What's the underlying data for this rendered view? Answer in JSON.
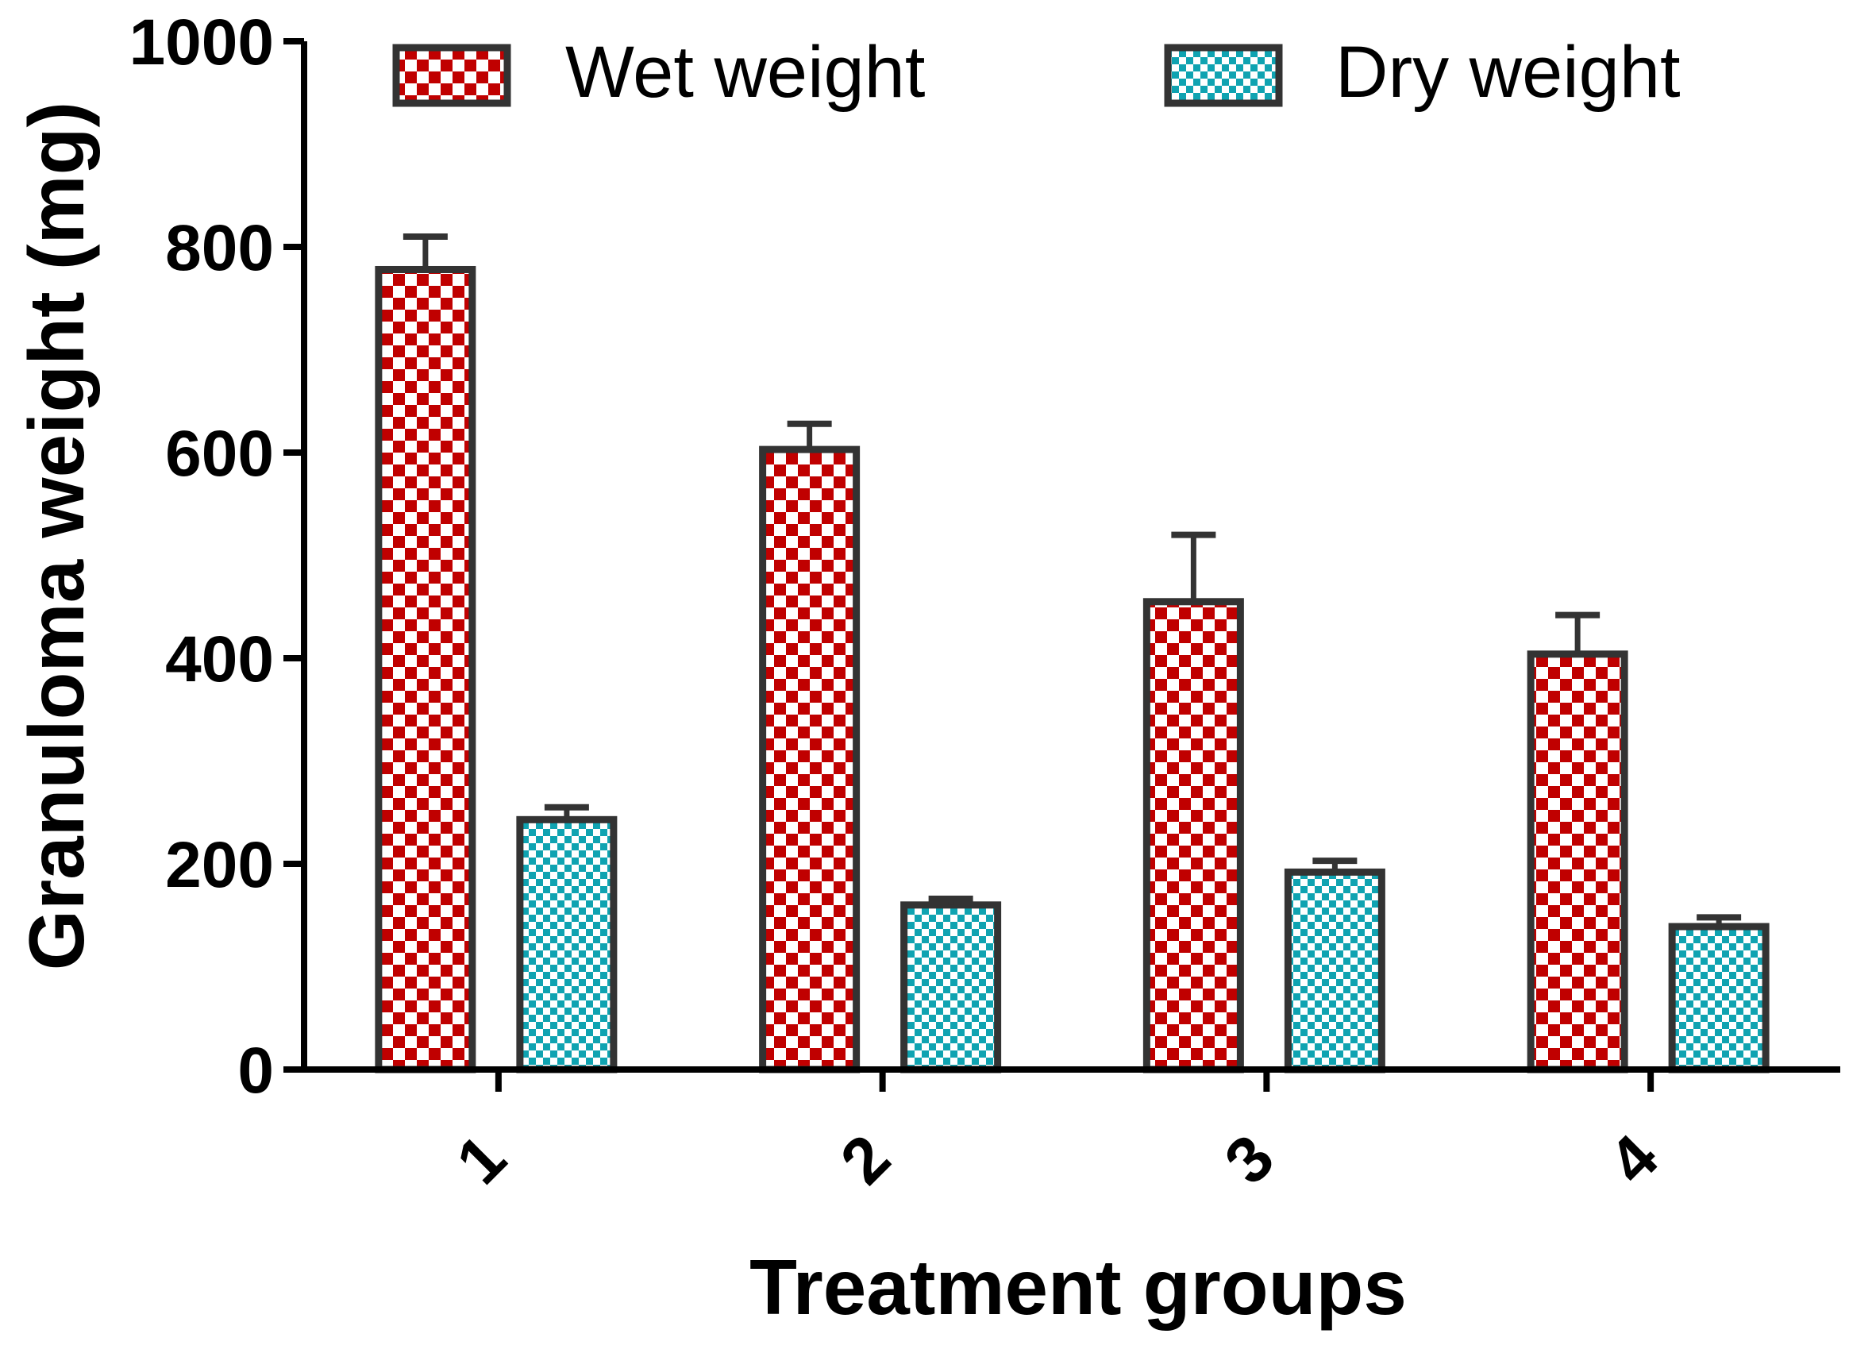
{
  "chart_data": {
    "type": "bar",
    "title": "",
    "xlabel": "Treatment groups",
    "ylabel": "Granuloma weight (mg)",
    "ylim": [
      0,
      1000
    ],
    "yticks": [
      "0",
      "200",
      "400",
      "600",
      "800",
      "1000"
    ],
    "categories": [
      "1",
      "2",
      "3",
      "4"
    ],
    "legend_position": "top",
    "series": [
      {
        "name": "Wet weight",
        "values": [
          778,
          603,
          455,
          404
        ],
        "errors": [
          32,
          25,
          65,
          38
        ],
        "color": "#c00000"
      },
      {
        "name": "Dry weight",
        "values": [
          243,
          160,
          192,
          139
        ],
        "errors": [
          12,
          6,
          11,
          9
        ],
        "color": "#0fa3b1"
      }
    ]
  },
  "colors": {
    "axis": "#000000",
    "bar_outline": "#333333",
    "background": "#ffffff"
  }
}
